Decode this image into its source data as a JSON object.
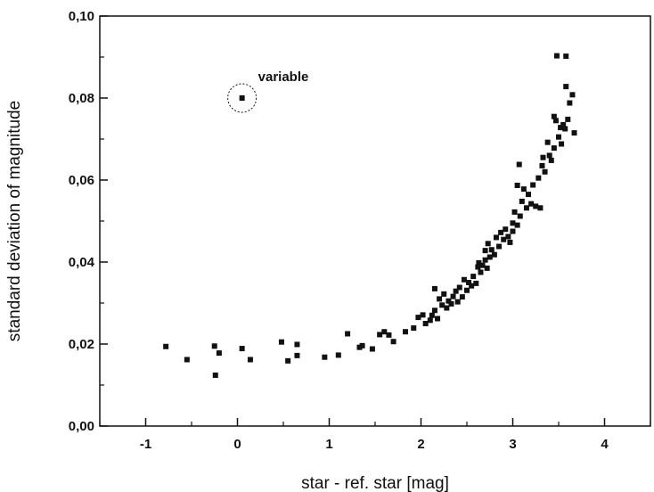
{
  "chart_data": {
    "type": "scatter",
    "title": "",
    "xlabel": "star - ref. star [mag]",
    "ylabel": "standard deviation of magnitude",
    "xlim": [
      -1.5,
      4.5
    ],
    "ylim": [
      0,
      0.1
    ],
    "xticks": [
      -1,
      0,
      1,
      2,
      3,
      4
    ],
    "xtick_labels": [
      "-1",
      "0",
      "1",
      "2",
      "3",
      "4"
    ],
    "yticks": [
      0,
      0.02,
      0.04,
      0.06,
      0.08,
      0.1
    ],
    "ytick_labels": [
      "0,00",
      "0,02",
      "0,04",
      "0,06",
      "0,08",
      "0,10"
    ],
    "grid": false,
    "marker_color": "#111111",
    "annotations": [
      {
        "text": "variable",
        "x": 0.05,
        "y": 0.08,
        "circled": true
      }
    ],
    "series": [
      {
        "points": [
          [
            -0.78,
            0.0194
          ],
          [
            -0.55,
            0.0162
          ],
          [
            -0.25,
            0.0195
          ],
          [
            -0.24,
            0.0124
          ],
          [
            -0.2,
            0.0178
          ],
          [
            0.05,
            0.0189
          ],
          [
            0.14,
            0.0162
          ],
          [
            0.48,
            0.0205
          ],
          [
            0.55,
            0.0159
          ],
          [
            0.65,
            0.0199
          ],
          [
            0.65,
            0.0172
          ],
          [
            0.95,
            0.0168
          ],
          [
            1.1,
            0.0173
          ],
          [
            1.2,
            0.0225
          ],
          [
            1.33,
            0.0192
          ],
          [
            1.36,
            0.0196
          ],
          [
            1.47,
            0.0188
          ],
          [
            1.55,
            0.0223
          ],
          [
            1.6,
            0.023
          ],
          [
            1.65,
            0.0222
          ],
          [
            1.7,
            0.0206
          ],
          [
            1.83,
            0.023
          ],
          [
            1.92,
            0.0239
          ],
          [
            1.97,
            0.0265
          ],
          [
            2.02,
            0.0271
          ],
          [
            2.05,
            0.025
          ],
          [
            2.1,
            0.0258
          ],
          [
            2.12,
            0.027
          ],
          [
            2.15,
            0.0282
          ],
          [
            2.15,
            0.0335
          ],
          [
            2.18,
            0.0262
          ],
          [
            2.2,
            0.031
          ],
          [
            2.23,
            0.0295
          ],
          [
            2.25,
            0.0322
          ],
          [
            2.28,
            0.0288
          ],
          [
            2.3,
            0.0305
          ],
          [
            2.33,
            0.0298
          ],
          [
            2.35,
            0.0316
          ],
          [
            2.38,
            0.0329
          ],
          [
            2.4,
            0.0303
          ],
          [
            2.42,
            0.0338
          ],
          [
            2.45,
            0.0315
          ],
          [
            2.47,
            0.0357
          ],
          [
            2.5,
            0.0331
          ],
          [
            2.52,
            0.035
          ],
          [
            2.55,
            0.0342
          ],
          [
            2.57,
            0.0365
          ],
          [
            2.6,
            0.0348
          ],
          [
            2.62,
            0.0388
          ],
          [
            2.63,
            0.0398
          ],
          [
            2.65,
            0.0375
          ],
          [
            2.67,
            0.0392
          ],
          [
            2.7,
            0.0405
          ],
          [
            2.7,
            0.0428
          ],
          [
            2.72,
            0.0385
          ],
          [
            2.73,
            0.0445
          ],
          [
            2.75,
            0.0412
          ],
          [
            2.77,
            0.043
          ],
          [
            2.8,
            0.0418
          ],
          [
            2.82,
            0.046
          ],
          [
            2.85,
            0.0438
          ],
          [
            2.87,
            0.0472
          ],
          [
            2.9,
            0.0455
          ],
          [
            2.92,
            0.048
          ],
          [
            2.95,
            0.0462
          ],
          [
            2.97,
            0.0448
          ],
          [
            3.0,
            0.0495
          ],
          [
            3.0,
            0.0475
          ],
          [
            3.02,
            0.0522
          ],
          [
            3.05,
            0.049
          ],
          [
            3.05,
            0.0587
          ],
          [
            3.07,
            0.0638
          ],
          [
            3.08,
            0.0512
          ],
          [
            3.1,
            0.0548
          ],
          [
            3.12,
            0.0578
          ],
          [
            3.15,
            0.0532
          ],
          [
            3.17,
            0.0565
          ],
          [
            3.2,
            0.0542
          ],
          [
            3.22,
            0.0588
          ],
          [
            3.25,
            0.0536
          ],
          [
            3.28,
            0.0605
          ],
          [
            3.3,
            0.0532
          ],
          [
            3.32,
            0.0635
          ],
          [
            3.33,
            0.0655
          ],
          [
            3.35,
            0.062
          ],
          [
            3.38,
            0.0692
          ],
          [
            3.4,
            0.066
          ],
          [
            3.42,
            0.0648
          ],
          [
            3.45,
            0.0678
          ],
          [
            3.45,
            0.0755
          ],
          [
            3.47,
            0.0745
          ],
          [
            3.48,
            0.0903
          ],
          [
            3.5,
            0.0705
          ],
          [
            3.52,
            0.0728
          ],
          [
            3.53,
            0.0688
          ],
          [
            3.55,
            0.0735
          ],
          [
            3.57,
            0.0725
          ],
          [
            3.58,
            0.0828
          ],
          [
            3.58,
            0.0902
          ],
          [
            3.6,
            0.0748
          ],
          [
            3.62,
            0.0788
          ],
          [
            3.65,
            0.0808
          ],
          [
            3.67,
            0.0715
          ],
          [
            0.05,
            0.08
          ]
        ]
      }
    ]
  }
}
